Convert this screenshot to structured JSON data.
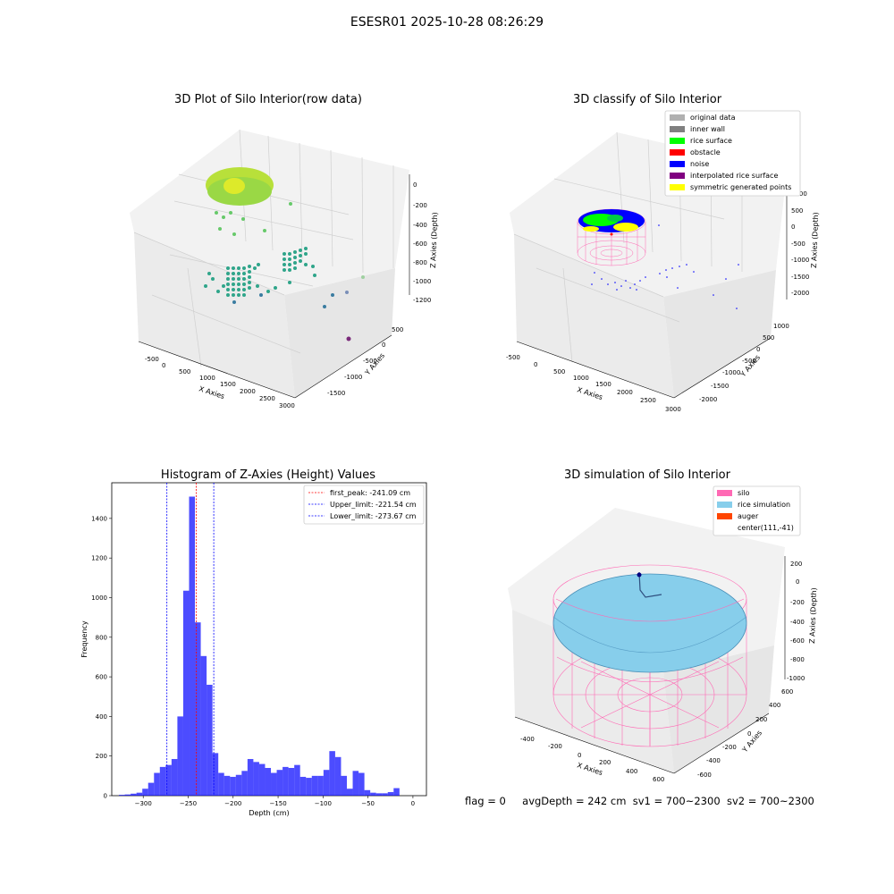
{
  "suptitle": "ESESR01 2025-10-28 08:26:29",
  "colors": {
    "original_data": "#b0b0b0",
    "inner_wall": "#808080",
    "rice_surface": "#00ff00",
    "obstacle": "#ff0000",
    "noise": "#0000ff",
    "interpolated_rice_surface": "#800080",
    "symmetric_generated_points": "#ffff00",
    "silo": "#ff69b4",
    "rice_simulation": "#87ceeb",
    "auger": "#ff4500",
    "histogram_bar": "#0000ff",
    "first_peak_line": "#ff0000",
    "limit_line": "#0000ff"
  },
  "plots": {
    "raw": {
      "title": "3D Plot of Silo Interior(row data)",
      "xlabel": "X Axies",
      "ylabel": "Y Axies",
      "zlabel": "Z Axies (Depth)",
      "xticks": [
        "-500",
        "0",
        "500",
        "1000",
        "1500",
        "2000",
        "2500",
        "3000"
      ],
      "yticks": [
        "-1500",
        "-1000",
        "-500",
        "0",
        "500"
      ],
      "zticks": [
        "0",
        "-200",
        "-400",
        "-600",
        "-800",
        "-1000",
        "-1200"
      ]
    },
    "classify": {
      "title": "3D classify of Silo Interior",
      "xlabel": "X Axies",
      "ylabel": "Y Axies",
      "zlabel": "Z Axies (Depth)",
      "xticks": [
        "-500",
        "0",
        "500",
        "1000",
        "1500",
        "2000",
        "2500",
        "3000"
      ],
      "yticks": [
        "-2000",
        "-1500",
        "-1000",
        "-500",
        "0",
        "500",
        "1000"
      ],
      "zticks": [
        "1000",
        "500",
        "0",
        "-500",
        "-1000",
        "-1500",
        "-2000"
      ],
      "legend": [
        "original data",
        "inner wall",
        "rice surface",
        "obstacle",
        "noise",
        "interpolated rice surface",
        "symmetric generated points"
      ]
    },
    "simulation": {
      "title": "3D simulation of Silo Interior",
      "xlabel": "X Axies",
      "ylabel": "Y Axies",
      "zlabel": "Z Axies (Depth)",
      "xticks": [
        "-400",
        "-200",
        "0",
        "200",
        "400",
        "600"
      ],
      "yticks": [
        "-600",
        "-400",
        "-200",
        "0",
        "200",
        "400",
        "600"
      ],
      "zticks": [
        "200",
        "0",
        "-200",
        "-400",
        "-600",
        "-800",
        "-1000"
      ],
      "legend": [
        "silo",
        "rice simulation",
        "auger",
        "center(111,-41)"
      ]
    }
  },
  "status": {
    "flag": "flag = 0",
    "avg_depth": "avgDepth = 242 cm",
    "sv1": "sv1 = 700~2300",
    "sv2": "sv2 = 700~2300"
  },
  "chart_data": {
    "type": "bar",
    "title": "Histogram of Z-Axies (Height) Values",
    "xlabel": "Depth (cm)",
    "ylabel": "Frequency",
    "xlim": [
      -335,
      15
    ],
    "ylim": [
      0,
      1580
    ],
    "xticks": [
      -300,
      -250,
      -200,
      -150,
      -100,
      -50,
      0
    ],
    "yticks": [
      0,
      200,
      400,
      600,
      800,
      1000,
      1200,
      1400
    ],
    "bin_width": 6.5,
    "bin_start": -327,
    "values": [
      4,
      6,
      10,
      15,
      35,
      65,
      115,
      145,
      155,
      185,
      400,
      1035,
      1510,
      875,
      705,
      560,
      215,
      115,
      100,
      95,
      105,
      125,
      185,
      170,
      160,
      140,
      115,
      130,
      145,
      140,
      155,
      95,
      90,
      100,
      100,
      130,
      225,
      195,
      100,
      35,
      125,
      115,
      28,
      15,
      12,
      12,
      18,
      38
    ],
    "vlines": [
      {
        "label": "first_peak: -241.09 cm",
        "x": -241.09,
        "color": "#ff0000"
      },
      {
        "label": "Upper_limit: -221.54 cm",
        "x": -221.54,
        "color": "#0000ff"
      },
      {
        "label": "Lower_limit: -273.67 cm",
        "x": -273.67,
        "color": "#0000ff"
      }
    ]
  }
}
